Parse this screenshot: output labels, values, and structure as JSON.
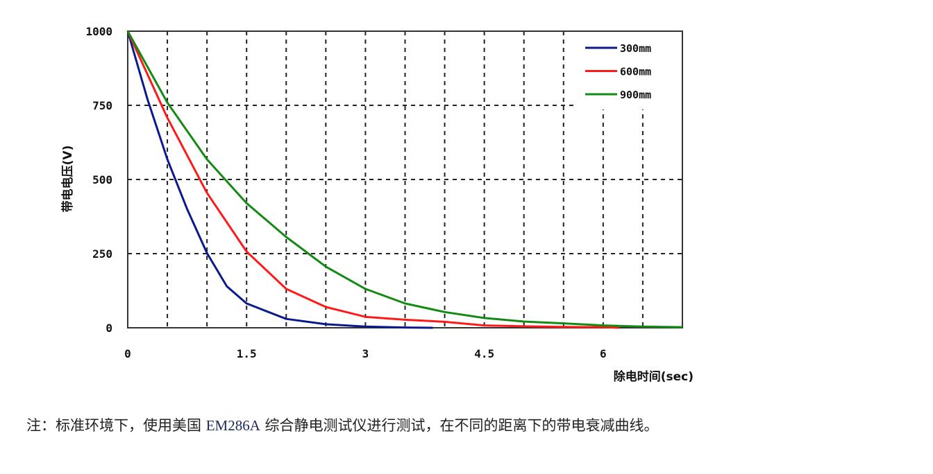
{
  "chart_data": {
    "type": "line",
    "xlabel": "除电时间(sec)",
    "ylabel": "带电电压(V)",
    "xlim": [
      0,
      7
    ],
    "ylim": [
      0,
      1000
    ],
    "x_ticks": [
      "0",
      "1.5",
      "3",
      "4.5",
      "6"
    ],
    "x_tick_values": [
      0,
      1.5,
      3,
      4.5,
      6
    ],
    "y_ticks": [
      "0",
      "250",
      "500",
      "750",
      "1000"
    ],
    "y_tick_values": [
      0,
      250,
      500,
      750,
      1000
    ],
    "grid": true,
    "grid_style": "dashed",
    "legend_position": "top-right",
    "series": [
      {
        "name": "300mm",
        "color": "#0a1a8c",
        "x": [
          0,
          0.25,
          0.5,
          0.75,
          1,
          1.25,
          1.5,
          2,
          2.5,
          3,
          3.5,
          3.85
        ],
        "y": [
          1000,
          770,
          568,
          400,
          252,
          140,
          82,
          30,
          12,
          4,
          1,
          0
        ]
      },
      {
        "name": "600mm",
        "color": "#ff1a1a",
        "x": [
          0,
          0.5,
          1,
          1.5,
          2,
          2.5,
          3,
          3.5,
          4,
          4.5,
          5,
          5.5,
          6,
          6.2
        ],
        "y": [
          1000,
          708,
          455,
          257,
          131,
          70,
          37,
          27,
          20,
          8,
          5,
          3,
          2,
          0
        ]
      },
      {
        "name": "900mm",
        "color": "#138a13",
        "x": [
          0,
          0.5,
          1,
          1.5,
          2,
          2.5,
          3,
          3.5,
          4,
          4.5,
          5,
          5.5,
          6,
          6.5,
          7
        ],
        "y": [
          1000,
          759,
          568,
          420,
          306,
          206,
          131,
          82,
          53,
          33,
          21,
          15,
          8,
          4,
          2
        ]
      }
    ]
  },
  "caption": {
    "prefix": "注：标准环境下，使用美国 ",
    "model": "EM286A",
    "suffix": " 综合静电测试仪进行测试，在不同的距离下的带电衰减曲线。"
  }
}
